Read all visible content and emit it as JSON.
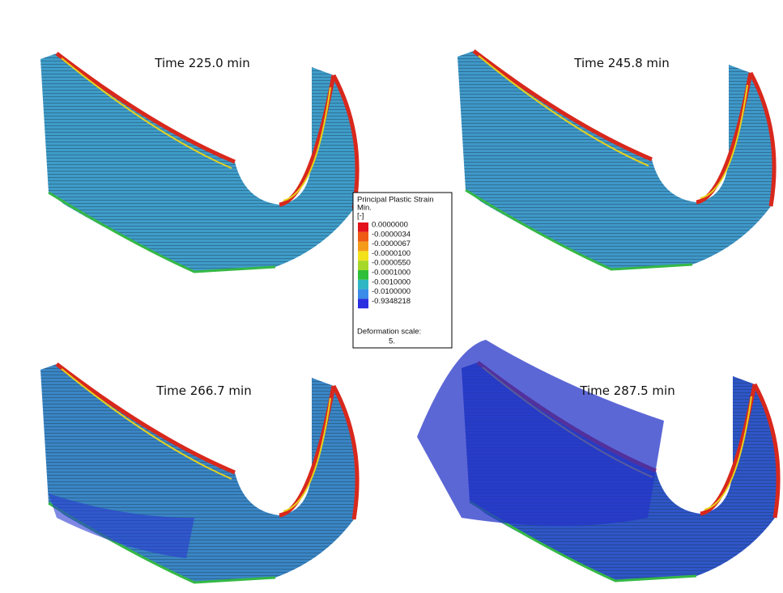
{
  "panels": [
    {
      "label": "Time 225.0 min"
    },
    {
      "label": "Time 245.8 min"
    },
    {
      "label": "Time 266.7 min"
    },
    {
      "label": "Time 287.5 min"
    }
  ],
  "legend": {
    "title": "Principal Plastic Strain",
    "subtitle": "Min.",
    "unit": "[-]",
    "entries": [
      {
        "label": "0.0000000",
        "color": "#e3121b"
      },
      {
        "label": "-0.0000034",
        "color": "#ef5a14"
      },
      {
        "label": "-0.0000067",
        "color": "#f59b1a"
      },
      {
        "label": "-0.0000100",
        "color": "#f2e21c"
      },
      {
        "label": "-0.0000550",
        "color": "#a6d82a"
      },
      {
        "label": "-0.0001000",
        "color": "#2fbf3a"
      },
      {
        "label": "-0.0010000",
        "color": "#2fb6c4"
      },
      {
        "label": "-0.0100000",
        "color": "#3b8be8"
      },
      {
        "label": "-0.9348218",
        "color": "#2a2fe0"
      }
    ],
    "deformation_label": "Deformation scale:",
    "deformation_value": "5."
  }
}
